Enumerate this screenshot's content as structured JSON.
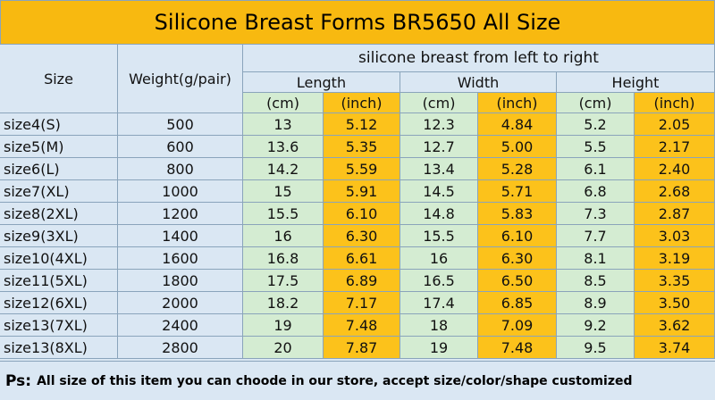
{
  "title": "Silicone Breast Forms BR5650 All Size",
  "table": {
    "header": {
      "size": "Size",
      "weight": "Weight(g/pair)",
      "group": "silicone breast from left to right",
      "dimensions": [
        "Length",
        "Width",
        "Height"
      ],
      "units": [
        "(cm)",
        "(inch)",
        "(cm)",
        "(inch)",
        "(cm)",
        "(inch)"
      ]
    },
    "rows": [
      [
        "size4(S)",
        "500",
        "13",
        "5.12",
        "12.3",
        "4.84",
        "5.2",
        "2.05"
      ],
      [
        "size5(M)",
        "600",
        "13.6",
        "5.35",
        "12.7",
        "5.00",
        "5.5",
        "2.17"
      ],
      [
        "size6(L)",
        "800",
        "14.2",
        "5.59",
        "13.4",
        "5.28",
        "6.1",
        "2.40"
      ],
      [
        "size7(XL)",
        "1000",
        "15",
        "5.91",
        "14.5",
        "5.71",
        "6.8",
        "2.68"
      ],
      [
        "size8(2XL)",
        "1200",
        "15.5",
        "6.10",
        "14.8",
        "5.83",
        "7.3",
        "2.87"
      ],
      [
        "size9(3XL)",
        "1400",
        "16",
        "6.30",
        "15.5",
        "6.10",
        "7.7",
        "3.03"
      ],
      [
        "size10(4XL)",
        "1600",
        "16.8",
        "6.61",
        "16",
        "6.30",
        "8.1",
        "3.19"
      ],
      [
        "size11(5XL)",
        "1800",
        "17.5",
        "6.89",
        "16.5",
        "6.50",
        "8.5",
        "3.35"
      ],
      [
        "size12(6XL)",
        "2000",
        "18.2",
        "7.17",
        "17.4",
        "6.85",
        "8.9",
        "3.50"
      ],
      [
        "size13(7XL)",
        "2400",
        "19",
        "7.48",
        "18",
        "7.09",
        "9.2",
        "3.62"
      ],
      [
        "size13(8XL)",
        "2800",
        "20",
        "7.87",
        "19",
        "7.48",
        "9.5",
        "3.74"
      ]
    ]
  },
  "note": {
    "label": "Ps:",
    "text": "All size of this item you can choode in our store, accept size/color/shape customized"
  }
}
